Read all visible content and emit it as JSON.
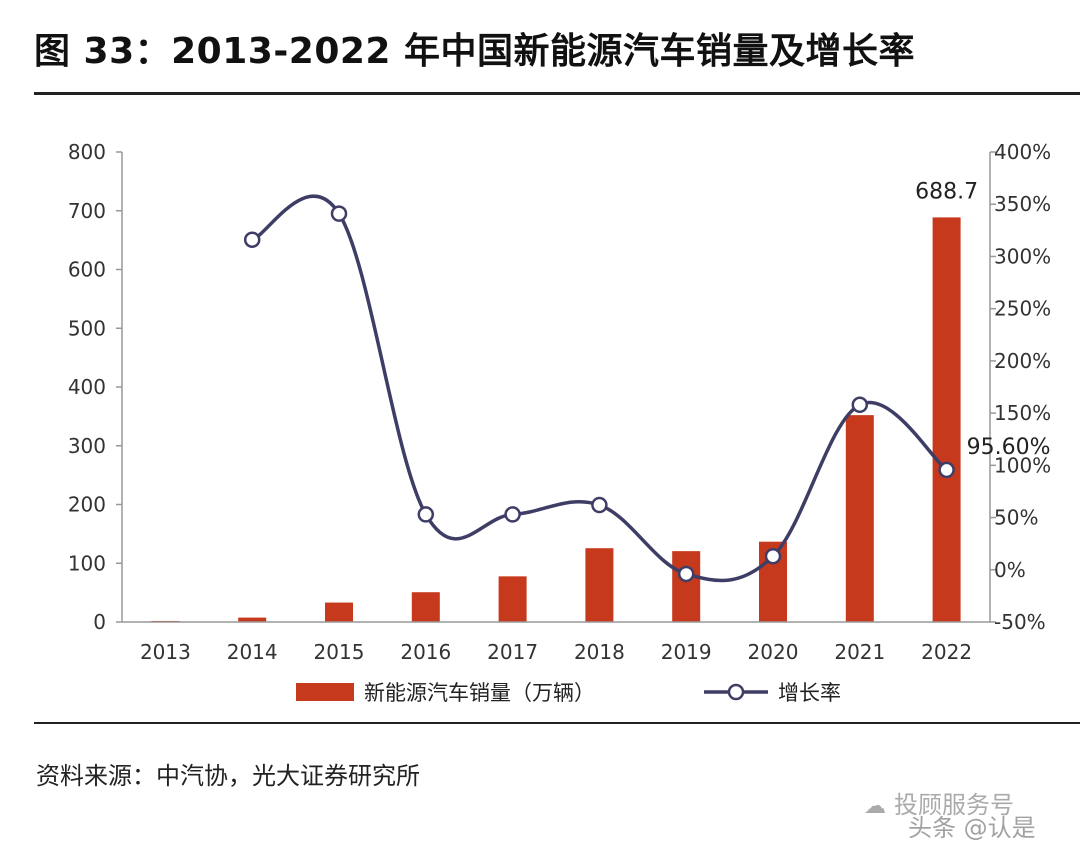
{
  "title": "图 33：2013-2022 年中国新能源汽车销量及增长率",
  "source": "资料来源：中汽协，光大证券研究所",
  "watermark": {
    "line1": "投顾服务号",
    "line2": "头条 @认是",
    "icon": "wechat-icon"
  },
  "colors": {
    "bar": "#c7391c",
    "line": "#3d3d66",
    "axis": "#999999"
  },
  "chart_data": {
    "type": "bar+line",
    "categories": [
      "2013",
      "2014",
      "2015",
      "2016",
      "2017",
      "2018",
      "2019",
      "2020",
      "2021",
      "2022"
    ],
    "series": [
      {
        "name": "新能源汽车销量（万辆）",
        "type": "bar",
        "axis": "left",
        "values": [
          1.8,
          7.5,
          33.1,
          50.7,
          77.7,
          125.6,
          120.6,
          136.7,
          352.1,
          688.7
        ]
      },
      {
        "name": "增长率",
        "type": "line",
        "axis": "right",
        "values": [
          null,
          316,
          341,
          53,
          53,
          62,
          -4,
          13,
          158,
          95.6
        ]
      }
    ],
    "left_axis": {
      "ylim": [
        0,
        800
      ],
      "ticks": [
        "0",
        "100",
        "200",
        "300",
        "400",
        "500",
        "600",
        "700",
        "800"
      ]
    },
    "right_axis": {
      "ylim": [
        -50,
        400
      ],
      "ticks": [
        "-50%",
        "0%",
        "50%",
        "100%",
        "150%",
        "200%",
        "250%",
        "300%",
        "350%",
        "400%"
      ]
    },
    "annotations": [
      {
        "text": "688.7",
        "category": "2022",
        "series": "新能源汽车销量（万辆）"
      },
      {
        "text": "95.60%",
        "category": "2022",
        "series": "增长率"
      }
    ],
    "grid": false,
    "legend": "bottom"
  }
}
